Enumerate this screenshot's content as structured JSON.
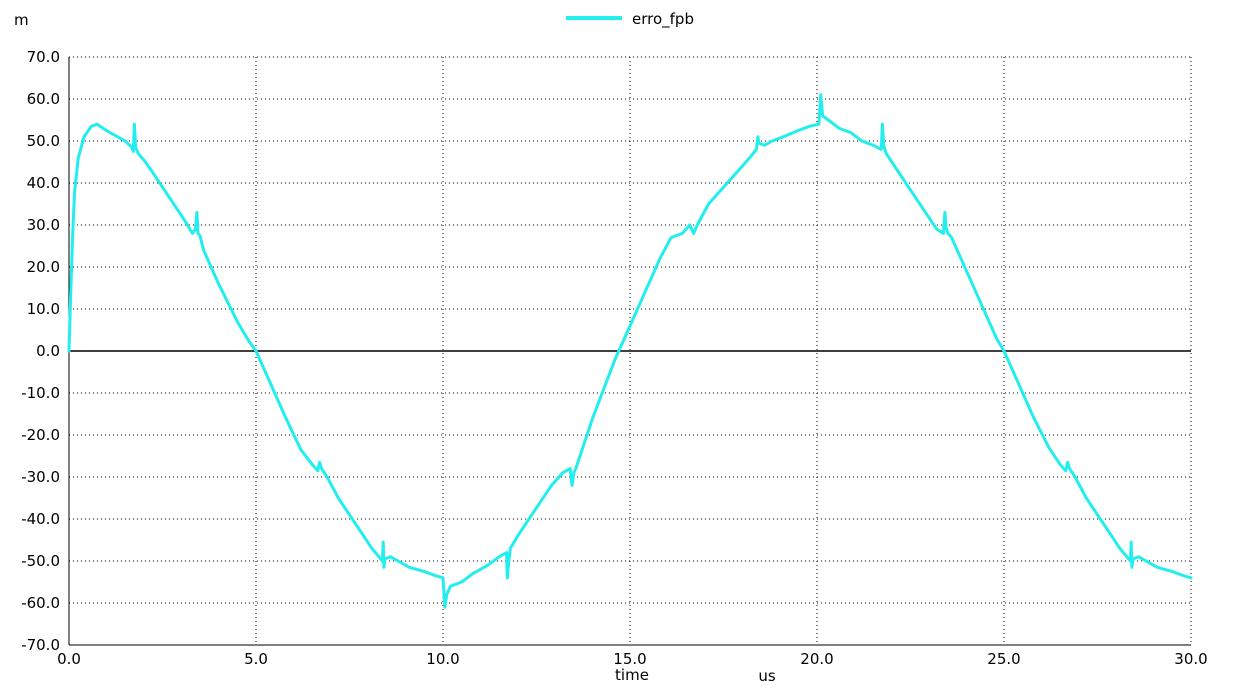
{
  "chart_data": {
    "type": "line",
    "title": "",
    "xlabel": "time",
    "x_unit": "us",
    "y_unit": "m",
    "xlim": [
      0,
      30
    ],
    "ylim": [
      -70,
      70
    ],
    "x_ticks": [
      "0.0",
      "5.0",
      "10.0",
      "15.0",
      "20.0",
      "25.0",
      "30.0"
    ],
    "y_ticks": [
      "70.0",
      "60.0",
      "50.0",
      "40.0",
      "30.0",
      "20.0",
      "10.0",
      "0.0",
      "-10.0",
      "-20.0",
      "-30.0",
      "-40.0",
      "-50.0",
      "-60.0",
      "-70.0"
    ],
    "grid": true,
    "legend_position": "top-center",
    "colors": {
      "series": "#22eeee",
      "axis": "#000000"
    },
    "series": [
      {
        "name": "erro_fpb",
        "x": [
          0,
          0.05,
          0.1,
          0.15,
          0.25,
          0.4,
          0.6,
          0.75,
          1.0,
          1.3,
          1.5,
          1.68,
          1.72,
          1.75,
          1.78,
          1.85,
          2.0,
          2.2,
          2.5,
          2.8,
          3.1,
          3.3,
          3.38,
          3.42,
          3.45,
          3.5,
          3.6,
          4.0,
          4.5,
          4.8,
          5.0,
          5.2,
          5.5,
          5.8,
          6.2,
          6.5,
          6.65,
          6.7,
          6.75,
          6.9,
          7.2,
          7.5,
          7.8,
          8.1,
          8.38,
          8.4,
          8.42,
          8.45,
          8.6,
          8.8,
          9.1,
          9.5,
          9.8,
          10.0,
          10.05,
          10.1,
          10.2,
          10.5,
          10.8,
          11.2,
          11.5,
          11.7,
          11.72,
          11.75,
          11.8,
          12.0,
          12.3,
          12.6,
          12.9,
          13.2,
          13.4,
          13.45,
          13.5,
          13.55,
          13.7,
          14.0,
          14.3,
          14.6,
          14.9,
          15.2,
          15.5,
          15.8,
          16.1,
          16.4,
          16.6,
          16.65,
          16.7,
          16.8,
          17.1,
          17.5,
          17.9,
          18.2,
          18.38,
          18.42,
          18.45,
          18.6,
          18.8,
          19.1,
          19.5,
          19.8,
          20.05,
          20.1,
          20.15,
          20.3,
          20.6,
          20.9,
          21.2,
          21.5,
          21.72,
          21.75,
          21.78,
          21.85,
          22.0,
          22.3,
          22.6,
          22.9,
          23.2,
          23.38,
          23.42,
          23.45,
          23.5,
          23.6,
          24.0,
          24.5,
          24.8,
          25.0,
          25.2,
          25.5,
          25.8,
          26.2,
          26.5,
          26.65,
          26.7,
          26.75,
          26.9,
          27.2,
          27.5,
          27.8,
          28.1,
          28.38,
          28.4,
          28.42,
          28.45,
          28.6,
          28.8,
          29.1,
          29.5,
          29.8,
          30.0
        ],
        "y": [
          0,
          15,
          28,
          38,
          46,
          51,
          53.5,
          54,
          52.5,
          51,
          50,
          48.5,
          47.5,
          54,
          48.5,
          47,
          45.5,
          43,
          39,
          35,
          31,
          28,
          29,
          33,
          28,
          27.5,
          24,
          16,
          7,
          2.5,
          0,
          -4,
          -10,
          -16,
          -23.5,
          -27,
          -28.5,
          -26.5,
          -28,
          -30,
          -35,
          -39,
          -43,
          -47,
          -50,
          -45.5,
          -51.5,
          -49.5,
          -49,
          -50,
          -51.5,
          -52.5,
          -53.5,
          -54,
          -61,
          -58,
          -56,
          -55,
          -53,
          -51,
          -49,
          -48,
          -54,
          -51,
          -47,
          -44,
          -40,
          -36,
          -32,
          -29,
          -28,
          -32,
          -29,
          -28,
          -24,
          -16,
          -9,
          -2,
          4,
          10,
          16,
          22,
          27,
          28,
          30,
          29,
          28,
          30,
          35,
          39,
          43,
          46,
          48,
          51,
          49.5,
          49,
          50,
          51,
          52.5,
          53.5,
          54,
          61,
          56,
          55,
          53,
          52,
          50,
          49,
          48,
          54,
          49,
          47,
          45,
          41,
          37,
          33,
          29,
          28,
          33,
          29.5,
          28,
          27,
          19,
          9,
          3,
          0,
          -4,
          -10,
          -16,
          -23,
          -27,
          -28.5,
          -26.5,
          -28,
          -30,
          -35,
          -39,
          -43,
          -47,
          -50,
          -45.5,
          -51.5,
          -49.5,
          -49,
          -50,
          -51.5,
          -52.5,
          -53.5,
          -54
        ]
      }
    ]
  }
}
